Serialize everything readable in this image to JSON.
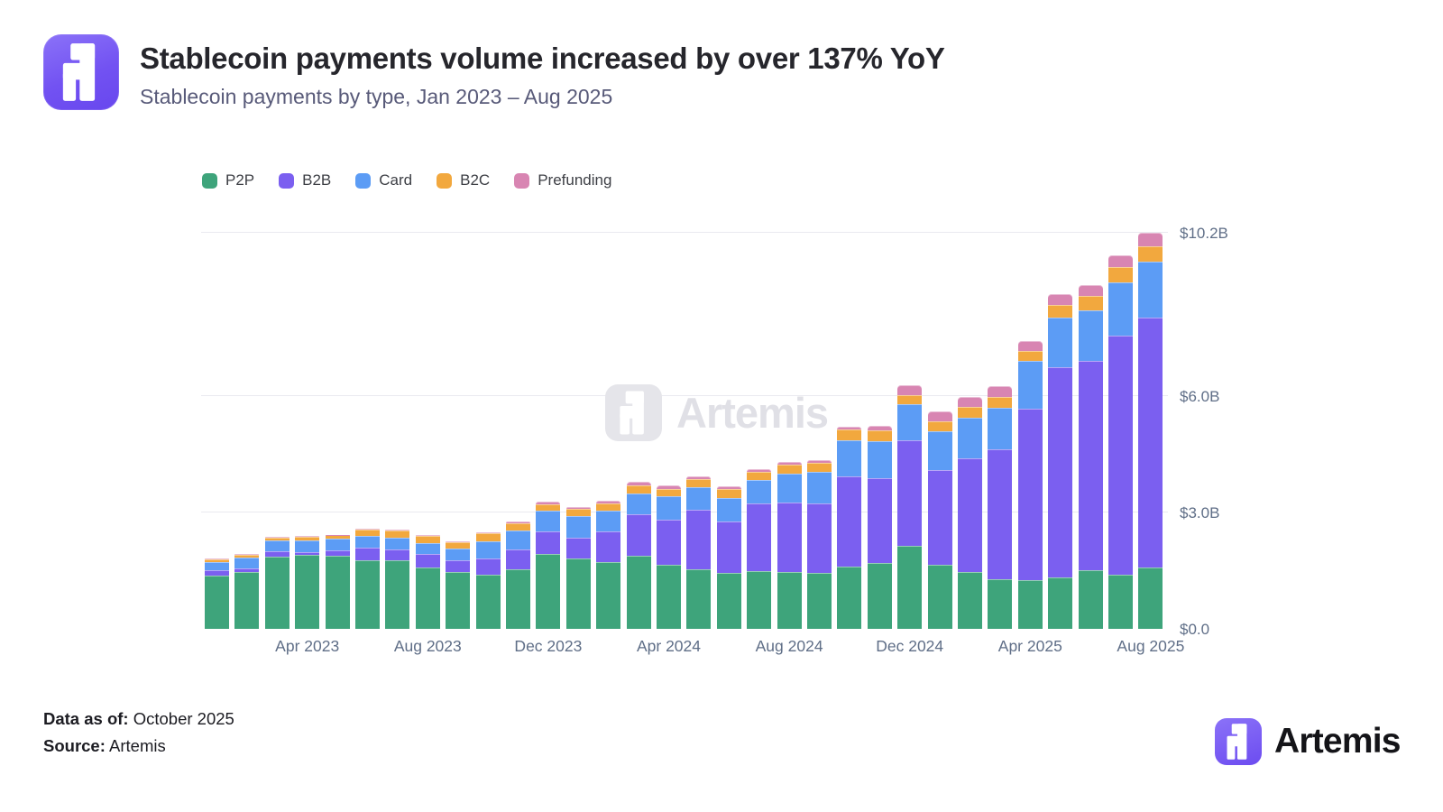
{
  "header": {
    "title": "Stablecoin payments volume increased by over 137% YoY",
    "subtitle": "Stablecoin payments by type, Jan 2023 – Aug 2025"
  },
  "watermark": {
    "text": "Artemis"
  },
  "footer": {
    "data_as_of_label": "Data as of:",
    "data_as_of_value": "October 2025",
    "source_label": "Source:",
    "source_value": "Artemis",
    "brand": "Artemis"
  },
  "chart_data": {
    "type": "bar",
    "stacked": true,
    "title": "Stablecoin payments volume increased by over 137% YoY",
    "subtitle": "Stablecoin payments by type, Jan 2023 - Aug 2025",
    "unit": "USD billions",
    "grid": "horizontal",
    "legend_position": "top-left",
    "ylim": [
      0,
      10.2
    ],
    "categories": [
      "Jan 2023",
      "Feb 2023",
      "Mar 2023",
      "Apr 2023",
      "May 2023",
      "Jun 2023",
      "Jul 2023",
      "Aug 2023",
      "Sep 2023",
      "Oct 2023",
      "Nov 2023",
      "Dec 2023",
      "Jan 2024",
      "Feb 2024",
      "Mar 2024",
      "Apr 2024",
      "May 2024",
      "Jun 2024",
      "Jul 2024",
      "Aug 2024",
      "Sep 2024",
      "Oct 2024",
      "Nov 2024",
      "Dec 2024",
      "Jan 2025",
      "Feb 2025",
      "Mar 2025",
      "Apr 2025",
      "May 2025",
      "Jun 2025",
      "Jul 2025",
      "Aug 2025"
    ],
    "series": [
      {
        "name": "P2P",
        "color": "#3EA47B",
        "values": [
          1.37,
          1.47,
          1.86,
          1.91,
          1.88,
          1.77,
          1.77,
          1.58,
          1.47,
          1.4,
          1.53,
          1.93,
          1.81,
          1.72,
          1.88,
          1.65,
          1.53,
          1.44,
          1.49,
          1.47,
          1.44,
          1.6,
          1.7,
          2.14,
          1.65,
          1.47,
          1.28,
          1.26,
          1.33,
          1.51,
          1.4,
          1.58
        ]
      },
      {
        "name": "B2B",
        "color": "#7B5FF0",
        "values": [
          0.14,
          0.09,
          0.14,
          0.07,
          0.14,
          0.33,
          0.28,
          0.35,
          0.3,
          0.42,
          0.51,
          0.58,
          0.53,
          0.79,
          1.07,
          1.16,
          1.55,
          1.33,
          1.74,
          1.79,
          1.79,
          2.33,
          2.19,
          2.72,
          2.44,
          2.93,
          3.35,
          4.42,
          5.42,
          5.4,
          6.16,
          6.44
        ]
      },
      {
        "name": "Card",
        "color": "#5C9CF5",
        "values": [
          0.21,
          0.28,
          0.27,
          0.3,
          0.3,
          0.3,
          0.3,
          0.28,
          0.3,
          0.44,
          0.49,
          0.53,
          0.56,
          0.53,
          0.53,
          0.6,
          0.57,
          0.6,
          0.6,
          0.74,
          0.81,
          0.93,
          0.95,
          0.93,
          1.0,
          1.05,
          1.07,
          1.23,
          1.28,
          1.3,
          1.37,
          1.44
        ]
      },
      {
        "name": "B2C",
        "color": "#F2A83E",
        "values": [
          0.07,
          0.07,
          0.08,
          0.09,
          0.09,
          0.16,
          0.19,
          0.19,
          0.16,
          0.21,
          0.19,
          0.16,
          0.19,
          0.19,
          0.21,
          0.19,
          0.21,
          0.23,
          0.21,
          0.23,
          0.23,
          0.28,
          0.28,
          0.23,
          0.26,
          0.26,
          0.28,
          0.26,
          0.33,
          0.37,
          0.4,
          0.4
        ]
      },
      {
        "name": "Prefunding",
        "color": "#D885B2",
        "values": [
          0.02,
          0.02,
          0.02,
          0.02,
          0.02,
          0.02,
          0.02,
          0.02,
          0.02,
          0.02,
          0.05,
          0.07,
          0.05,
          0.07,
          0.09,
          0.09,
          0.07,
          0.07,
          0.07,
          0.07,
          0.09,
          0.07,
          0.12,
          0.26,
          0.26,
          0.26,
          0.28,
          0.26,
          0.26,
          0.28,
          0.3,
          0.35
        ]
      }
    ],
    "yticks": [
      {
        "value": 0,
        "label": "$0.0"
      },
      {
        "value": 3,
        "label": "$3.0B"
      },
      {
        "value": 6,
        "label": "$6.0B"
      },
      {
        "value": 10.2,
        "label": "$10.2B"
      }
    ],
    "xticks": [
      {
        "index": 3,
        "label": "Apr 2023"
      },
      {
        "index": 7,
        "label": "Aug 2023"
      },
      {
        "index": 11,
        "label": "Dec 2023"
      },
      {
        "index": 15,
        "label": "Apr 2024"
      },
      {
        "index": 19,
        "label": "Aug 2024"
      },
      {
        "index": 23,
        "label": "Dec 2024"
      },
      {
        "index": 27,
        "label": "Apr 2025"
      },
      {
        "index": 31,
        "label": "Aug 2025"
      }
    ]
  }
}
